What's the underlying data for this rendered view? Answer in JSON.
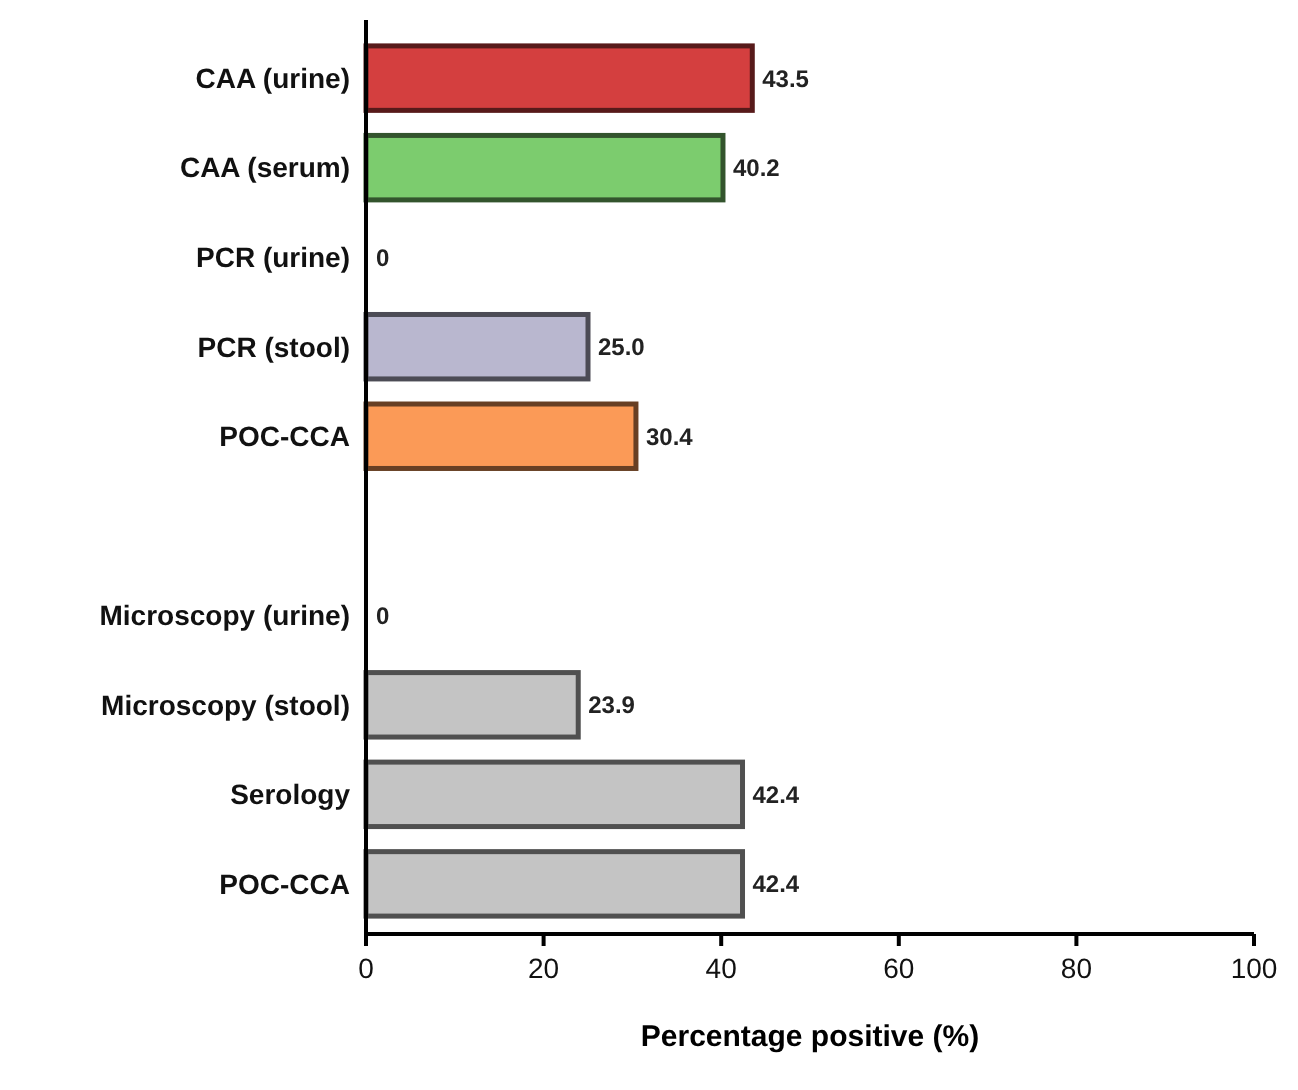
{
  "chart_data": {
    "type": "bar",
    "orientation": "horizontal",
    "xlabel": "Percentage positive (%)",
    "categories": [
      "CAA (urine)",
      "CAA (serum)",
      "PCR (urine)",
      "PCR (stool)",
      "POC-CCA",
      null,
      "Microscopy (urine)",
      "Microscopy (stool)",
      "Serology",
      "POC-CCA"
    ],
    "values": [
      43.5,
      40.2,
      0,
      25.0,
      30.4,
      null,
      0,
      23.9,
      42.4,
      42.4
    ],
    "value_labels": [
      "43.5",
      "40.2",
      "0",
      "25.0",
      "30.4",
      null,
      "0",
      "23.9",
      "42.4",
      "42.4"
    ],
    "colors": [
      "#d43f3f",
      "#7ccc6e",
      "#b9b7cf",
      "#b9b7cf",
      "#fb9a57",
      null,
      "#c4c4c4",
      "#c4c4c4",
      "#c4c4c4",
      "#c4c4c4"
    ],
    "xlim": [
      0,
      100
    ],
    "xticks": [
      0,
      20,
      40,
      60,
      80,
      100
    ],
    "grid": false
  }
}
